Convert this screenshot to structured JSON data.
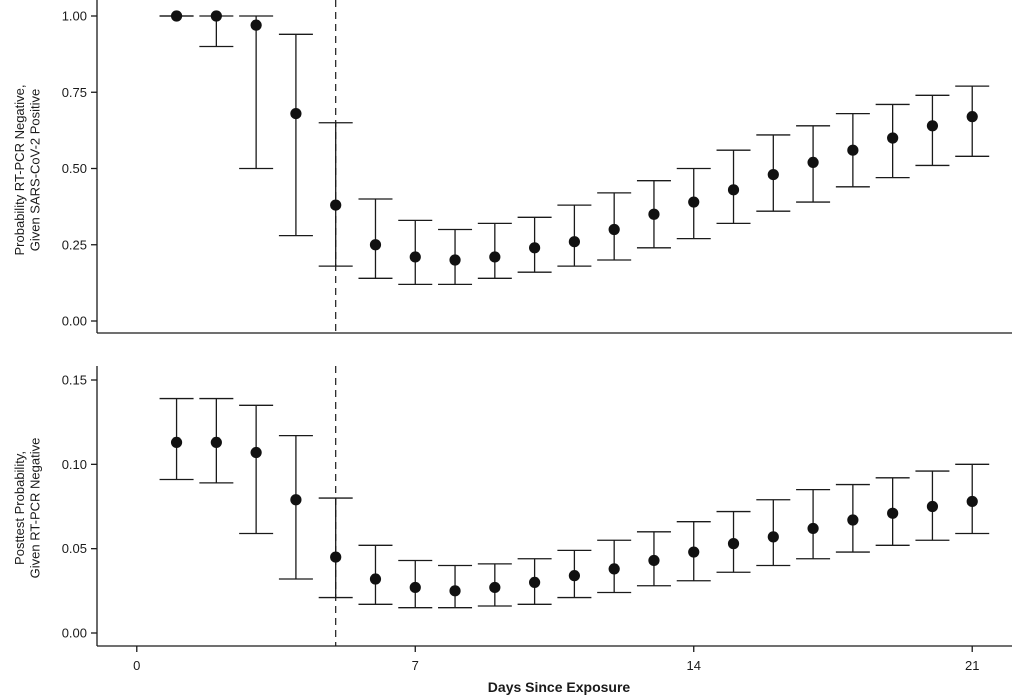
{
  "chart_data": [
    {
      "type": "scatter",
      "title": "",
      "xlabel": "",
      "ylabel_lines": [
        "Probability RT-PCR Negative,",
        "Given SARS-CoV-2 Positive"
      ],
      "xlim": [
        -1,
        22
      ],
      "ylim": [
        0,
        1.0
      ],
      "yticks": [
        0.0,
        0.25,
        0.5,
        0.75,
        1.0
      ],
      "ytick_labels": [
        "0.00",
        "0.25",
        "0.50",
        "0.75",
        "1.00"
      ],
      "reference_line_x": 5,
      "x": [
        1,
        2,
        3,
        4,
        5,
        6,
        7,
        8,
        9,
        10,
        11,
        12,
        13,
        14,
        15,
        16,
        17,
        18,
        19,
        20,
        21
      ],
      "y": [
        1.0,
        1.0,
        0.97,
        0.68,
        0.38,
        0.25,
        0.21,
        0.2,
        0.21,
        0.24,
        0.26,
        0.3,
        0.35,
        0.39,
        0.43,
        0.48,
        0.52,
        0.56,
        0.6,
        0.64,
        0.67
      ],
      "lower": [
        1.0,
        0.9,
        0.5,
        0.28,
        0.18,
        0.14,
        0.12,
        0.12,
        0.14,
        0.16,
        0.18,
        0.2,
        0.24,
        0.27,
        0.32,
        0.36,
        0.39,
        0.44,
        0.47,
        0.51,
        0.54
      ],
      "upper": [
        1.0,
        1.0,
        1.0,
        0.94,
        0.65,
        0.4,
        0.33,
        0.3,
        0.32,
        0.34,
        0.38,
        0.42,
        0.46,
        0.5,
        0.56,
        0.61,
        0.64,
        0.68,
        0.71,
        0.74,
        0.77
      ]
    },
    {
      "type": "scatter",
      "title": "",
      "xlabel": "Days Since Exposure",
      "ylabel_lines": [
        "Posttest Probability,",
        "Given RT-PCR Negative"
      ],
      "xlim": [
        -1,
        22
      ],
      "ylim": [
        0,
        0.15
      ],
      "yticks": [
        0.0,
        0.05,
        0.1,
        0.15
      ],
      "ytick_labels": [
        "0.00",
        "0.05",
        "0.10",
        "0.15"
      ],
      "xticks": [
        0,
        7,
        14,
        21
      ],
      "xtick_labels": [
        "0",
        "7",
        "14",
        "21"
      ],
      "reference_line_x": 5,
      "x": [
        1,
        2,
        3,
        4,
        5,
        6,
        7,
        8,
        9,
        10,
        11,
        12,
        13,
        14,
        15,
        16,
        17,
        18,
        19,
        20,
        21
      ],
      "y": [
        0.113,
        0.113,
        0.107,
        0.079,
        0.045,
        0.032,
        0.027,
        0.025,
        0.027,
        0.03,
        0.034,
        0.038,
        0.043,
        0.048,
        0.053,
        0.057,
        0.062,
        0.067,
        0.071,
        0.075,
        0.078
      ],
      "lower": [
        0.091,
        0.089,
        0.059,
        0.032,
        0.021,
        0.017,
        0.015,
        0.015,
        0.016,
        0.017,
        0.021,
        0.024,
        0.028,
        0.031,
        0.036,
        0.04,
        0.044,
        0.048,
        0.052,
        0.055,
        0.059
      ],
      "upper": [
        0.139,
        0.139,
        0.135,
        0.117,
        0.08,
        0.052,
        0.043,
        0.04,
        0.041,
        0.044,
        0.049,
        0.055,
        0.06,
        0.066,
        0.072,
        0.079,
        0.085,
        0.088,
        0.092,
        0.096,
        0.1
      ]
    }
  ]
}
